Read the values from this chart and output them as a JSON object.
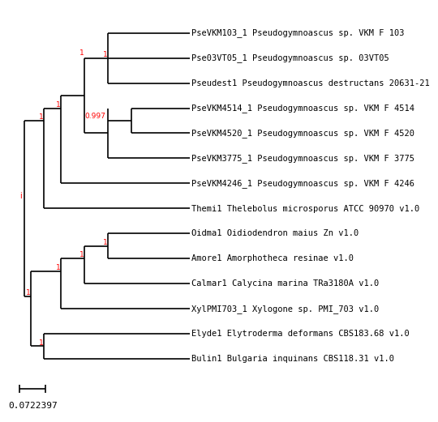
{
  "taxa": [
    "PseVKM103_1 Pseudogymnoascus sp. VKM F 103",
    "Pse03VT05_1 Pseudogymnoascus sp. 03VT05",
    "Pseudest1 Pseudogymnoascus destructans 20631-21",
    "PseVKM4514_1 Pseudogymnoascus sp. VKM F 4514",
    "PseVKM4520_1 Pseudogymnoascus sp. VKM F 4520",
    "PseVKM3775_1 Pseudogymnoascus sp. VKM F 3775",
    "PseVKM4246_1 Pseudogymnoascus sp. VKM F 4246",
    "Themi1 Thelebolus microsporus ATCC 90970 v1.0",
    "Oidma1 Oidiodendron maius Zn v1.0",
    "Amore1 Amorphotheca resinae v1.0",
    "Calmar1 Calycina marina TRa3180A v1.0",
    "XylPMI703_1 Xylogone sp. PMI_703 v1.0",
    "Elyde1 Elytroderma deformans CBS183.68 v1.0",
    "Bulin1 Bulgaria inquinans CBS118.31 v1.0"
  ],
  "scale_bar_value": "0.0722397",
  "background_color": "#ffffff",
  "line_color": "#000000",
  "label_color": "#000000",
  "support_color": "#ff0000",
  "font_size": 7.5,
  "scale_font_size": 8
}
